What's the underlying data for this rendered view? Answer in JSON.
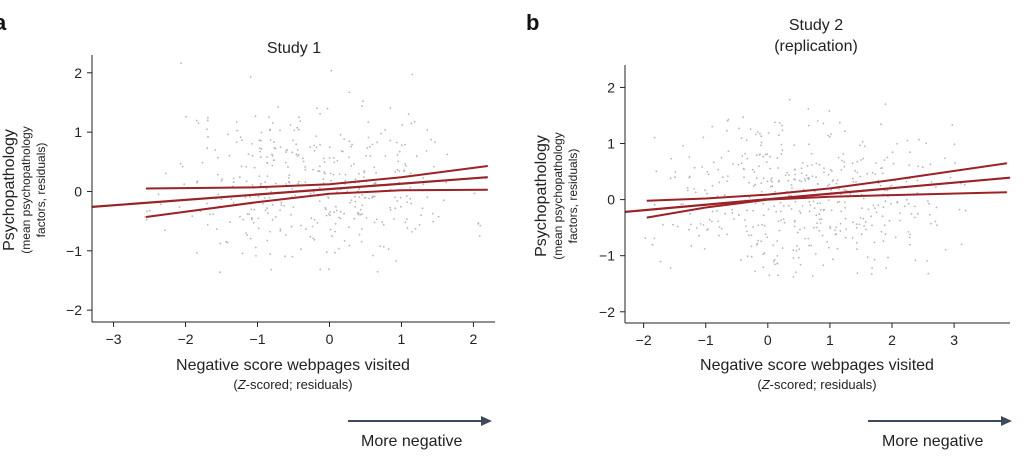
{
  "chart_data": [
    {
      "type": "scatter",
      "panel_label": "a",
      "title": [
        "Study 1"
      ],
      "xlabel": "Negative score webpages visited",
      "xlabel_sub": [
        "(",
        "Z",
        "-scored; residuals)"
      ],
      "ylabel": [
        "Psychopathology",
        "(mean psychopathology",
        "factors, residuals)"
      ],
      "xlim": [
        -3.3,
        2.3
      ],
      "ylim": [
        -2.2,
        2.3
      ],
      "xticks": [
        -3,
        -2,
        -1,
        0,
        1,
        2
      ],
      "xtick_labels": [
        "−3",
        "−2",
        "−1",
        "0",
        "1",
        "2"
      ],
      "yticks": [
        -2,
        -1,
        0,
        1,
        2
      ],
      "ytick_labels": [
        "−2",
        "−1",
        "0",
        "1",
        "2"
      ],
      "fit_line": {
        "x": [
          -3.3,
          2.2
        ],
        "y": [
          -0.26,
          0.24
        ]
      },
      "ci_upper": {
        "x": [
          -2.55,
          -1,
          0,
          1,
          2.2
        ],
        "y": [
          0.05,
          0.07,
          0.12,
          0.24,
          0.43
        ]
      },
      "ci_lower": {
        "x": [
          -2.55,
          -1,
          0,
          1,
          2.2
        ],
        "y": [
          -0.43,
          -0.18,
          -0.04,
          0.02,
          0.03
        ]
      },
      "scatter": {
        "x_range": [
          -2.6,
          2.2
        ],
        "y_range": [
          -1.4,
          2.25
        ],
        "approx_n": 420
      },
      "arrow_label": "More negative",
      "colors": {
        "line": "#9b2226",
        "points": "#b5b5b5",
        "arrow": "#3d4a5c"
      }
    },
    {
      "type": "scatter",
      "panel_label": "b",
      "title": [
        "Study 2",
        "(replication)"
      ],
      "xlabel": "Negative score webpages visited",
      "xlabel_sub": [
        "(",
        "Z",
        "-scored; residuals)"
      ],
      "ylabel": [
        "Psychopathology",
        "(mean psychopathology",
        "factors, residuals)"
      ],
      "xlim": [
        -2.3,
        3.9
      ],
      "ylim": [
        -2.2,
        2.4
      ],
      "xticks": [
        -2,
        -1,
        0,
        1,
        2,
        3
      ],
      "xtick_labels": [
        "−2",
        "−1",
        "0",
        "1",
        "2",
        "3"
      ],
      "yticks": [
        -2,
        -1,
        0,
        1,
        2
      ],
      "ytick_labels": [
        "−2",
        "−1",
        "0",
        "1",
        "2"
      ],
      "fit_line": {
        "x": [
          -2.3,
          3.9
        ],
        "y": [
          -0.22,
          0.39
        ]
      },
      "ci_upper": {
        "x": [
          -1.95,
          -1,
          0,
          1,
          2,
          3.85
        ],
        "y": [
          -0.02,
          0.02,
          0.09,
          0.2,
          0.35,
          0.65
        ]
      },
      "ci_lower": {
        "x": [
          -1.95,
          -1,
          0,
          1,
          2,
          3.85
        ],
        "y": [
          -0.32,
          -0.14,
          0.0,
          0.05,
          0.08,
          0.13
        ]
      },
      "scatter": {
        "x_range": [
          -2.0,
          3.2
        ],
        "y_range": [
          -1.4,
          2.2
        ],
        "approx_n": 480
      },
      "arrow_label": "More negative",
      "colors": {
        "line": "#9b2226",
        "points": "#b5b5b5",
        "arrow": "#3d4a5c"
      }
    }
  ]
}
